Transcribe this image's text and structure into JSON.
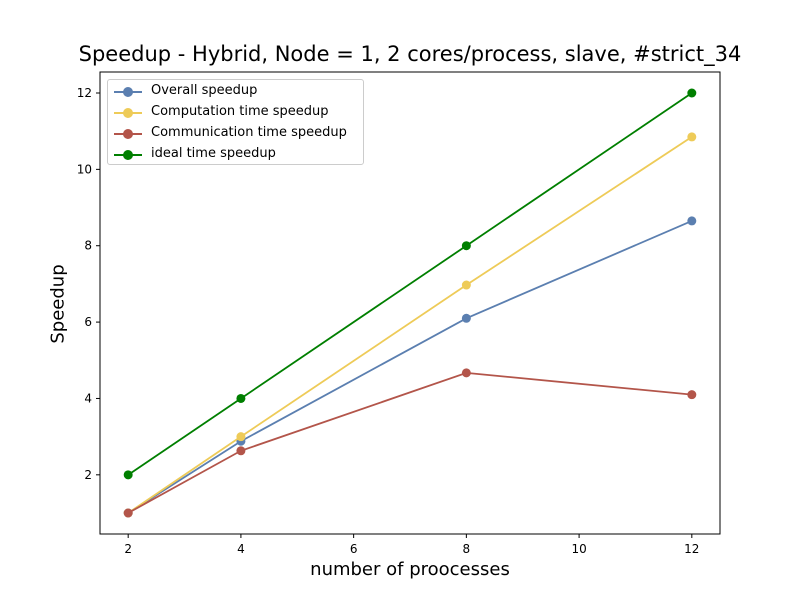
{
  "chart_data": {
    "type": "line",
    "title": "Speedup - Hybrid, Node = 1, 2 cores/process, slave, #strict_34",
    "xlabel": "number of proocesses",
    "ylabel": "Speedup",
    "x": [
      2,
      4,
      8,
      12
    ],
    "xlim": [
      1.5,
      12.5
    ],
    "ylim": [
      0.45,
      12.55
    ],
    "xticks": [
      2,
      4,
      6,
      8,
      10,
      12
    ],
    "yticks": [
      2,
      4,
      6,
      8,
      10,
      12
    ],
    "grid": false,
    "legend_position": "top-left",
    "series": [
      {
        "name": "Overall speedup",
        "color": "#5b7fb0",
        "values": [
          1.0,
          2.88,
          6.1,
          8.65
        ]
      },
      {
        "name": "Computation time speedup",
        "color": "#eecb58",
        "values": [
          1.0,
          3.0,
          6.97,
          10.85
        ]
      },
      {
        "name": "Communication time speedup",
        "color": "#b3554a",
        "values": [
          1.0,
          2.63,
          4.67,
          4.1
        ]
      },
      {
        "name": "ideal time speedup",
        "color": "#007f00",
        "values": [
          2.0,
          4.0,
          8.0,
          12.0
        ]
      }
    ]
  }
}
